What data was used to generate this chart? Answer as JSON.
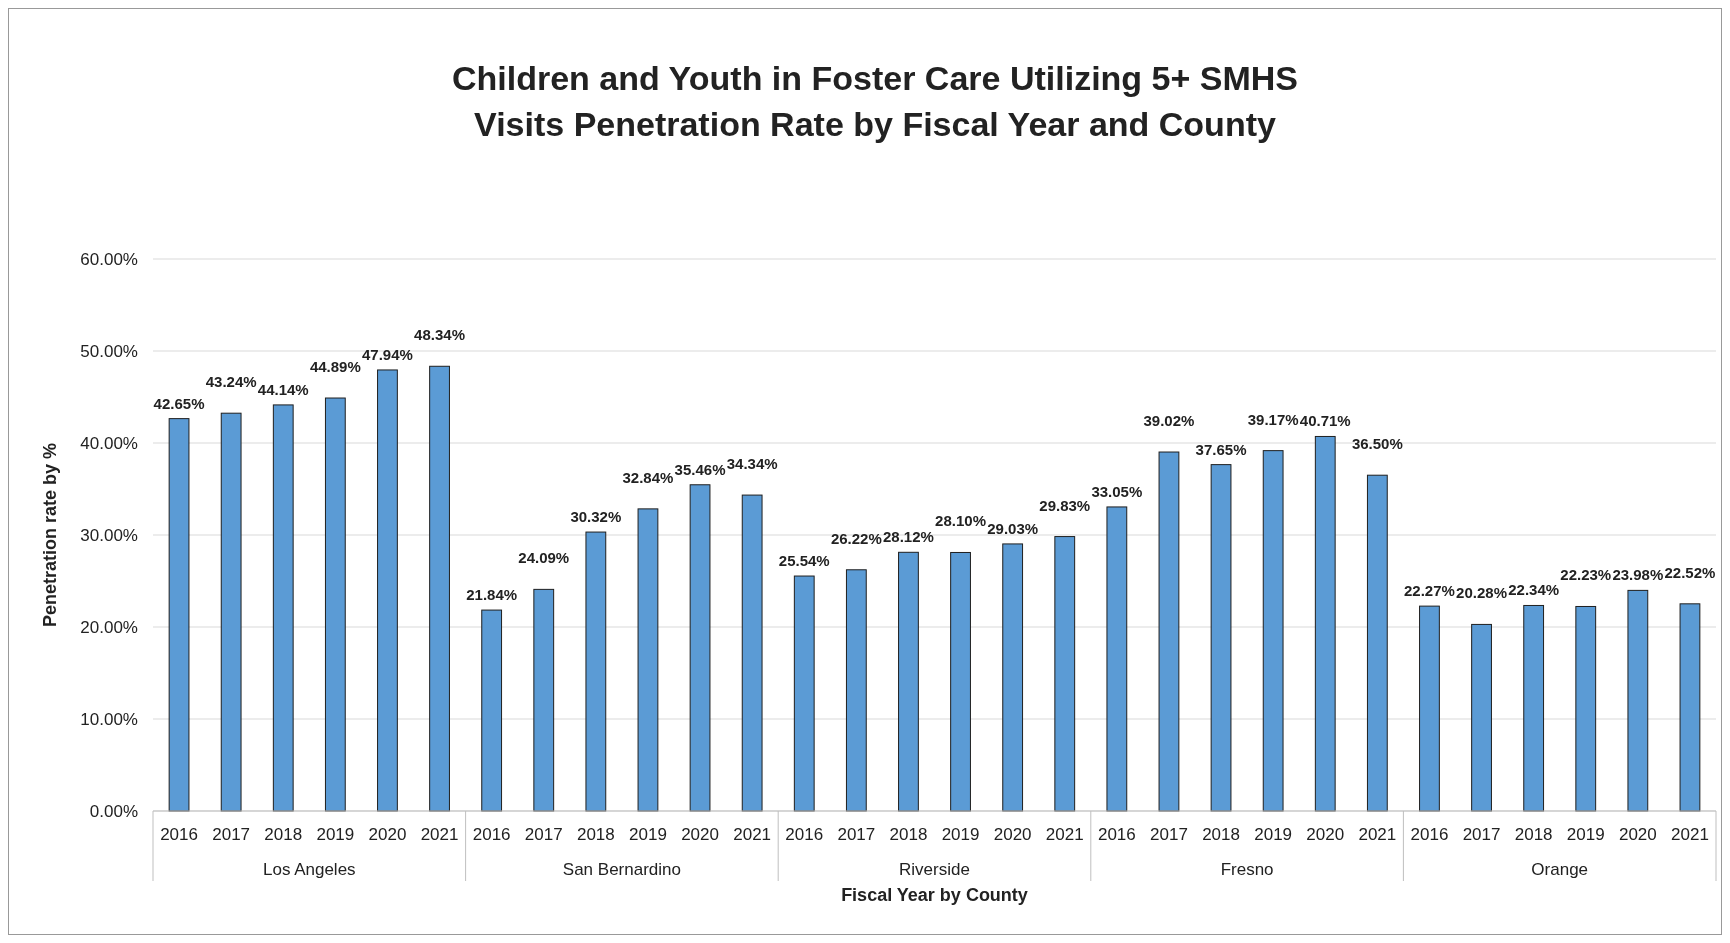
{
  "chart_data": {
    "type": "bar",
    "title": "Children and Youth in Foster Care Utilizing 5+ SMHS\nVisits Penetration Rate by Fiscal Year and County",
    "xlabel": "Fiscal Year by County",
    "ylabel": "Penetration rate by %",
    "categories": [
      "2016",
      "2017",
      "2018",
      "2019",
      "2020",
      "2021",
      "2016",
      "2017",
      "2018",
      "2019",
      "2020",
      "2021",
      "2016",
      "2017",
      "2018",
      "2019",
      "2020",
      "2021",
      "2016",
      "2017",
      "2018",
      "2019",
      "2020",
      "2021",
      "2016",
      "2017",
      "2018",
      "2019",
      "2020",
      "2021"
    ],
    "values": [
      42.65,
      43.24,
      44.14,
      44.89,
      47.94,
      48.34,
      21.84,
      24.09,
      30.32,
      32.84,
      35.46,
      34.34,
      25.54,
      26.22,
      28.12,
      28.1,
      29.03,
      29.83,
      33.05,
      39.02,
      37.65,
      39.17,
      40.71,
      36.5,
      22.27,
      20.28,
      22.34,
      22.23,
      23.98,
      22.52
    ],
    "value_labels": [
      "42.65%",
      "43.24%",
      "44.14%",
      "44.89%",
      "47.94%",
      "48.34%",
      "21.84%",
      "24.09%",
      "30.32%",
      "32.84%",
      "35.46%",
      "34.34%",
      "25.54%",
      "26.22%",
      "28.12%",
      "28.10%",
      "29.03%",
      "29.83%",
      "33.05%",
      "39.02%",
      "37.65%",
      "39.17%",
      "40.71%",
      "36.50%",
      "22.27%",
      "20.28%",
      "22.34%",
      "22.23%",
      "23.98%",
      "22.52%"
    ],
    "annotations": [
      "Los Angeles",
      "San Bernardino",
      "Riverside",
      "Fresno",
      "Orange"
    ],
    "color": "#5b9bd5",
    "ylim": [
      0,
      60
    ],
    "yticks": [
      {
        "value": 0,
        "label": "0.00%"
      },
      {
        "value": 10,
        "label": "10.00%"
      },
      {
        "value": 20,
        "label": "20.00%"
      },
      {
        "value": 30,
        "label": "30.00%"
      },
      {
        "value": 40,
        "label": "40.00%"
      },
      {
        "value": 50,
        "label": "50.00%"
      },
      {
        "value": 60,
        "label": "60.00%"
      }
    ],
    "grid": "y"
  }
}
